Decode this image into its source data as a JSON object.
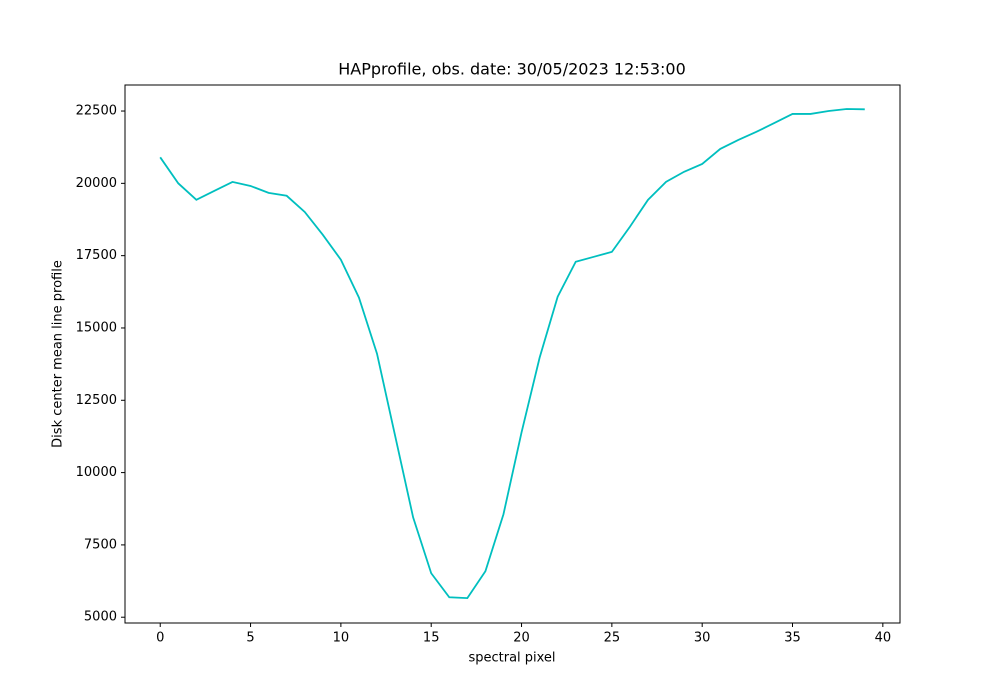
{
  "chart_data": {
    "type": "line",
    "title": "HAPprofile, obs. date: 30/05/2023 12:53:00",
    "x_label": "spectral pixel",
    "y_label": "Disk center mean line profile",
    "x": [
      0,
      1,
      2,
      3,
      4,
      5,
      6,
      7,
      8,
      9,
      10,
      11,
      12,
      13,
      14,
      15,
      16,
      17,
      18,
      19,
      20,
      21,
      22,
      23,
      24,
      25,
      26,
      27,
      28,
      29,
      30,
      31,
      32,
      33,
      34,
      35,
      36,
      37,
      38,
      39
    ],
    "series": [
      {
        "color": "#00bfbf",
        "values": [
          20900,
          20000,
          19430,
          19740,
          20050,
          19910,
          19670,
          19570,
          19010,
          18220,
          17360,
          16050,
          14110,
          11280,
          8450,
          6520,
          5690,
          5660,
          6590,
          8560,
          11390,
          13970,
          16080,
          17290,
          17460,
          17630,
          18500,
          19430,
          20050,
          20400,
          20670,
          21190,
          21500,
          21780,
          22090,
          22400,
          22400,
          22500,
          22570,
          22560
        ]
      }
    ],
    "xlim": [
      -1.95,
      40.95
    ],
    "xticks": [
      0,
      5,
      10,
      15,
      20,
      25,
      30,
      35,
      40
    ],
    "ylim": [
      4800,
      23400
    ],
    "yticks": [
      5000,
      7500,
      10000,
      12500,
      15000,
      17500,
      20000,
      22500
    ]
  }
}
